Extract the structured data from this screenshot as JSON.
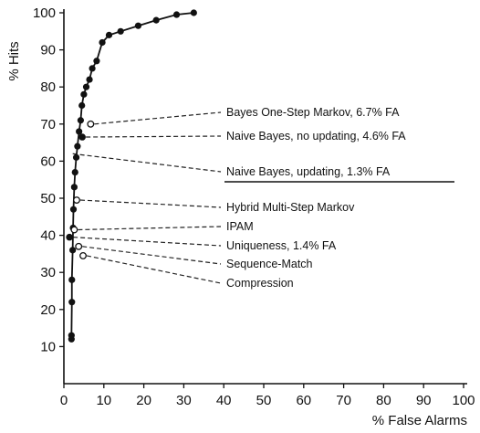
{
  "chart_data": {
    "type": "scatter",
    "xlabel": "% False Alarms",
    "ylabel": "% Hits",
    "xlim": [
      0,
      100
    ],
    "ylim": [
      0,
      100
    ],
    "xticks": [
      0,
      10,
      20,
      30,
      40,
      50,
      60,
      70,
      80,
      90,
      100
    ],
    "yticks": [
      10,
      20,
      30,
      40,
      50,
      60,
      70,
      80,
      90,
      100
    ],
    "grid": false,
    "colors": {
      "axis": "#111111",
      "series": "#111111",
      "leader": "#222222"
    },
    "series": [
      {
        "marker": "filled-circle",
        "line": true,
        "x": [
          1.9,
          1.9,
          2.0,
          2.0,
          2.2,
          2.3,
          2.4,
          2.6,
          2.8,
          3.1,
          3.4,
          3.8,
          4.2,
          4.5,
          5.0,
          5.6,
          6.4,
          7.1,
          8.2,
          9.6,
          11.3,
          14.2,
          18.6,
          23.1,
          28.2,
          32.5
        ],
        "y": [
          12,
          13,
          22,
          28,
          36,
          42,
          47,
          53,
          57,
          61,
          64,
          68,
          71,
          75,
          78,
          80,
          82,
          85,
          87,
          92,
          94,
          95,
          96.5,
          98,
          99.5,
          100
        ]
      }
    ],
    "annotations": [
      {
        "text": "Bayes One-Step Markov, 6.7% FA",
        "x": 6.7,
        "y": 70,
        "marker": "open",
        "underline": false
      },
      {
        "text": "Naive Bayes, no updating, 4.6% FA",
        "x": 4.6,
        "y": 66.5,
        "marker": "filled",
        "underline": false
      },
      {
        "text": "Naive Bayes, updating, 1.3% FA",
        "x": 1.3,
        "y": 62,
        "marker": "none",
        "underline": true
      },
      {
        "text": "Hybrid Multi-Step Markov",
        "x": 3.2,
        "y": 49.5,
        "marker": "open",
        "underline": false
      },
      {
        "text": "IPAM",
        "x": 2.6,
        "y": 41.5,
        "marker": "open",
        "underline": false
      },
      {
        "text": "Uniqueness, 1.4% FA",
        "x": 1.4,
        "y": 39.5,
        "marker": "filled",
        "underline": false
      },
      {
        "text": "Sequence-Match",
        "x": 3.7,
        "y": 37,
        "marker": "open",
        "underline": false
      },
      {
        "text": "Compression",
        "x": 4.8,
        "y": 34.5,
        "marker": "open",
        "underline": false
      }
    ]
  }
}
